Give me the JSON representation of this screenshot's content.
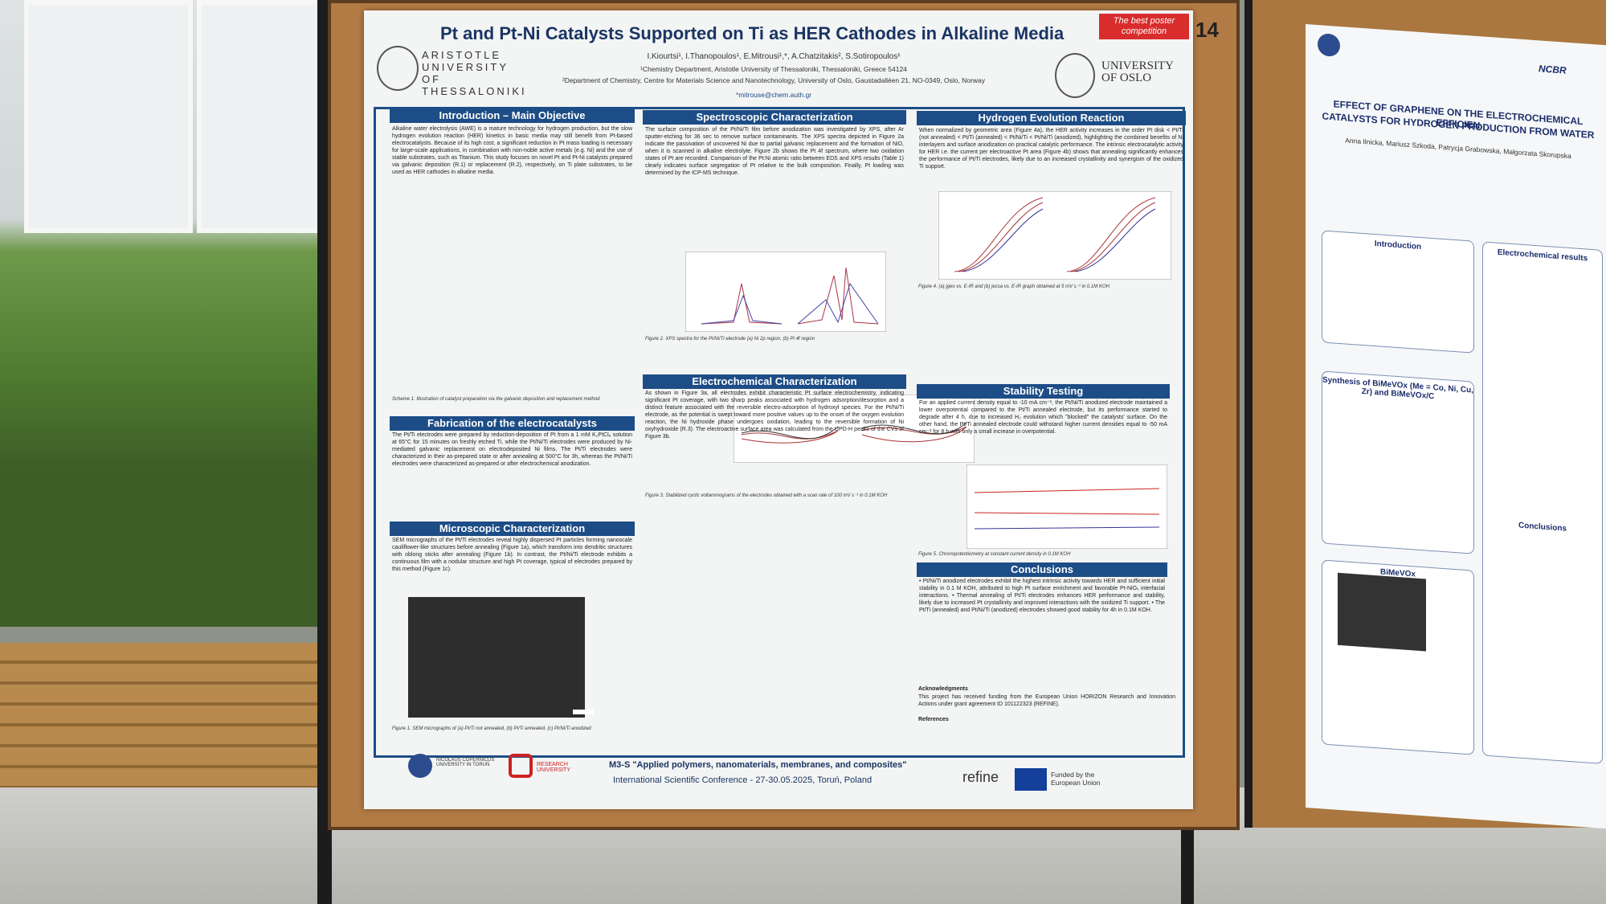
{
  "poster": {
    "title": "Pt and Pt-Ni Catalysts Supported on Ti as HER Cathodes in Alkaline Media",
    "badge": "The best poster competition",
    "number": "14",
    "university_left": "ARISTOTLE UNIVERSITY OF THESSALONIKI",
    "university_right": "UNIVERSITY OF OSLO",
    "authors": "I.Kiourtsi¹, I.Thanopoulos¹, E.Mitrousi¹,*, A.Chatzitakis², S.Sotiropoulos¹",
    "affiliation_1": "¹Chemistry Department, Aristotle University of Thessaloniki, Thessaloniki, Greece 54124",
    "affiliation_2": "²Department of Chemistry, Centre for Materials Science and Nanotechnology, University of Oslo, Gaustadalléen 21, NO-0349, Oslo, Norway",
    "email": "*mitrouse@chem.auth.gr",
    "sections": [
      {
        "heading": "Introduction – Main Objective",
        "text": "Alkaline water electrolysis (AWE) is a mature technology for hydrogen production, but the slow hydrogen evolution reaction (HER) kinetics in basic media may still benefit from Pt-based electrocatalysts. Because of its high cost, a significant reduction in Pt mass loading is necessary for large-scale applications, in combination with non-noble active metals (e.g. Ni) and the use of stable substrates, such as Titanium. This study focuses on novel Pt and Pt-Ni catalysts prepared via galvanic deposition (R.1) or replacement (R.2), respectively, on Ti plate substrates, to be used as HER cathodes in alkaline media."
      },
      {
        "heading": "Fabrication of the electrocatalysts",
        "text": "The Pt/Ti electrodes were prepared by reduction-deposition of Pt from a 1 mM K₂PtCl₆ solution at 65°C for 15 minutes on freshly etched Ti, while the Pt/Ni/Ti electrodes were produced by Ni-mediated galvanic replacement on electrodeposited Ni films. The Pt/Ti electrodes were characterized in their as-prepared state or after annealing at 500°C for 3h, whereas the Pt/Ni/Ti electrodes were characterized as-prepared or after electrochemical anodization."
      },
      {
        "heading": "Microscopic Characterization",
        "text": "SEM micrographs of the Pt/Ti electrodes reveal highly dispersed Pt particles forming nanoscale cauliflower-like structures before annealing (Figure 1a), which transform into dendritic structures with oblong sticks after annealing (Figure 1b). In contrast, the Pt/Ni/Ti electrode exhibits a continuous film with a nodular structure and high Pt coverage, typical of electrodes prepared by this method (Figure 1c)."
      },
      {
        "heading": "Spectroscopic Characterization",
        "text": "The surface composition of the Pt/Ni/Ti film before anodization was investigated by XPS, after Ar sputter-etching for 36 sec to remove surface contaminants. The XPS spectra depicted in Figure 2a indicate the passivation of uncovered Ni due to partial galvanic replacement and the formation of NiO, when it is scanned in alkaline electrolyte. Figure 2b shows the Pt 4f spectrum, where two oxidation states of Pt are recorded. Comparison of the Pt:Ni atomic ratio between EDS and XPS results (Table 1) clearly indicates surface segregation of Pt relative to the bulk composition. Finally, Pt loading was determined by the ICP-MS technique."
      },
      {
        "heading": "Electrochemical Characterization",
        "text": "As shown in Figure 3a, all electrodes exhibit characteristic Pt surface electrochemistry, indicating significant Pt coverage, with two sharp peaks associated with hydrogen adsorption/desorption and a distinct feature associated with the reversible electro-adsorption of hydroxyl species. For the Pt/Ni/Ti electrode, as the potential is swept toward more positive values up to the onset of the oxygen evolution reaction, the Ni hydroxide phase undergoes oxidation, leading to the reversible formation of Ni oxyhydroxide (R.3). The electroactive surface area was calculated from the UPD-H peaks of the CVs of Figure 3b."
      },
      {
        "heading": "Hydrogen Evolution Reaction",
        "text": "When normalized by geometric area (Figure 4a), the HER activity increases in the order Pt disk < Pt/Ti (not annealed) < Pt/Ti (annealed) < Pt/Ni/Ti < Pt/Ni/Ti (anodized), highlighting the combined benefits of Ni interlayers and surface anodization on practical catalytic performance. The intrinsic electrocatalytic activity for HER i.e. the current per electroactive Pt area (Figure 4b) shows that annealing significantly enhances the performance of Pt/Ti electrodes, likely due to an increased crystallinity and synergism of the oxidized Ti support."
      },
      {
        "heading": "Stability Testing",
        "text": "For an applied current density equal to -10 mA cm⁻², the Pt/Ni/Ti anodized electrode maintained a lower overpotential compared to the Pt/Ti annealed electrode, but its performance started to degrade after 4 h, due to increased H₂ evolution which \"blocked\" the catalysts' surface. On the other hand, the Pt/Ti annealed electrode could withstand higher current densities equal to -50 mA cm⁻² for 8 h with only a small increase in overpotential."
      },
      {
        "heading": "Conclusions",
        "text": "• Pt/Ni/Ti anodized electrodes exhibit the highest intrinsic activity towards HER and sufficient initial stability in 0.1 M KOH, attributed to high Pt surface enrichment and favorable Pt-NiOₓ interfacial interactions. • Thermal annealing of Pt/Ti electrodes enhances HER performance and stability, likely due to increased Pt crystallinity and improved interactions with the oxidized Ti support. • The Pt/Ti (annealed) and Pt/Ni/Ti (anodized) electrodes showed good stability for 4h in 0.1M KOH."
      }
    ],
    "scheme_caption": "Scheme 1. Illustration of catalyst preparation via the galvanic deposition and replacement method",
    "figure1_caption": "Figure 1. SEM micrographs of (a) Pt/Ti not annealed, (b) Pt/Ti annealed, (c) Pt/Ni/Ti anodized",
    "figure2_caption": "Figure 2. XPS spectra for the Pt/Ni/Ti electrode (a) Ni 2p region, (b) Pt 4f region",
    "figure3_caption": "Figure 3. Stabilized cyclic voltammograms of the electrodes obtained with a scan rate of 100 mV s⁻¹ in 0.1M KOH",
    "figure4_caption": "Figure 4. (a) jgeo vs. E-IR and (b) jecsa vs. E-IR graph obtained at 5 mV s⁻¹ in 0.1M KOH",
    "figure5_caption": "Figure 5. Chronopotentiometry at constant current density in 0.1M KOH",
    "acknowledgments_heading": "Acknowledgments",
    "acknowledgments": "This project has received funding from the European Union HORIZON Research and Innovation Actions under grant agreement ID 101122323 (REFINE).",
    "references_heading": "References",
    "footer_line_1": "M3-S \"Applied polymers, nanomaterials, membranes, and composites\"",
    "footer_line_2": "International Scientific Conference - 27-30.05.2025, Toruń, Poland",
    "footer_refine": "refine",
    "footer_funded": "Funded by the European Union",
    "footer_logo_left": "NICOLAUS COPERNICUS UNIVERSITY IN TORUŃ",
    "footer_logo_mid": "RESEARCH UNIVERSITY"
  },
  "neighbor_poster": {
    "title_1": "EFFECT OF GRAPHENE ON THE ELECTROCHEMICAL EFFICIEN",
    "title_2": "CATALYSTS FOR HYDROGEN PRODUCTION FROM WATER",
    "authors": "Anna Ilnicka, Mariusz Szkoda, Patrycja Grabowska, Małgorzata Skorupska",
    "logo": "NCBR",
    "headings": [
      "Introduction",
      "Synthesis of BiMeVOx (Me = Co, Ni, Cu, Zr) and BiMeVOx/C",
      "BiMeVOx",
      "Electrochemical results",
      "Conclusions"
    ]
  }
}
